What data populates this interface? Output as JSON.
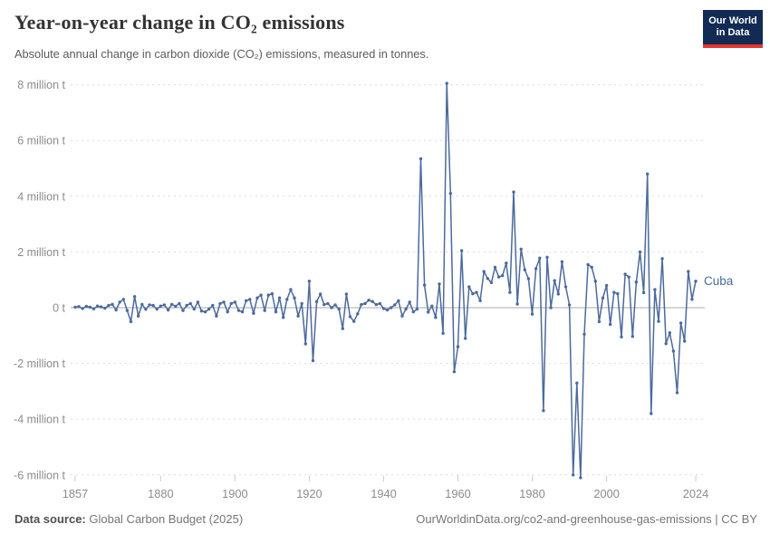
{
  "header": {
    "title": "Year-on-year change in CO₂ emissions",
    "subtitle": "Absolute annual change in carbon dioxide (CO₂) emissions, measured in tonnes.",
    "logo": {
      "line1": "Our World",
      "line2": "in Data"
    }
  },
  "footer": {
    "source_label": "Data source:",
    "source_value": " Global Carbon Budget (2025)",
    "link": "OurWorldinData.org/co2-and-greenhouse-gas-emissions | CC BY"
  },
  "chart_data": {
    "type": "line",
    "title": "Year-on-year change in CO₂ emissions",
    "series_label": "Cuba",
    "x_start_year": 1857,
    "x_end_year": 2024,
    "xticks": [
      1857,
      1880,
      1900,
      1920,
      1940,
      1960,
      1980,
      2000,
      2024
    ],
    "yticks": [
      8,
      6,
      4,
      2,
      0,
      -2,
      -4,
      -6
    ],
    "ytick_labels": [
      "8 million t",
      "6 million t",
      "4 million t",
      "2 million t",
      "0 t",
      "-2 million t",
      "-4 million t",
      "-6 million t"
    ],
    "ylim": [
      -6.5,
      8.3
    ],
    "unit": "million tonnes",
    "grid": "dashed horizontal, solid zero line",
    "legend_position": "end-of-line label",
    "line_color": "#4C6A9C",
    "grid_color": "#dcdcdc",
    "zero_line_color": "#a9a9a9",
    "axis_label_color": "#8b8b8b",
    "values": [
      0.02,
      0.04,
      -0.03,
      0.05,
      0.02,
      -0.04,
      0.06,
      0.03,
      -0.02,
      0.08,
      0.12,
      -0.08,
      0.2,
      0.3,
      -0.1,
      -0.5,
      0.4,
      -0.3,
      0.12,
      -0.06,
      0.1,
      0.08,
      -0.05,
      0.06,
      0.1,
      -0.08,
      0.12,
      0.05,
      0.15,
      -0.1,
      0.08,
      0.15,
      -0.05,
      0.2,
      -0.12,
      -0.15,
      -0.05,
      0.08,
      -0.3,
      0.15,
      0.2,
      -0.15,
      0.15,
      0.2,
      -0.1,
      -0.15,
      0.25,
      0.3,
      -0.2,
      0.35,
      0.45,
      -0.1,
      0.45,
      0.5,
      -0.15,
      0.35,
      -0.35,
      0.3,
      0.65,
      0.35,
      -0.3,
      0.15,
      -1.3,
      0.95,
      -1.9,
      0.22,
      0.49,
      0.11,
      0.15,
      0.0,
      0.1,
      -0.05,
      -0.75,
      0.49,
      -0.32,
      -0.49,
      -0.22,
      0.11,
      0.15,
      0.27,
      0.22,
      0.11,
      0.15,
      -0.03,
      -0.08,
      0.0,
      0.1,
      0.25,
      -0.3,
      -0.05,
      0.2,
      -0.15,
      -0.05,
      5.34,
      0.81,
      -0.16,
      0.06,
      -0.35,
      0.85,
      -0.92,
      8.05,
      4.1,
      -2.3,
      -1.4,
      2.05,
      -1.1,
      0.75,
      0.5,
      0.55,
      0.25,
      1.3,
      1.05,
      0.9,
      1.45,
      1.1,
      1.15,
      1.6,
      0.55,
      4.15,
      0.13,
      2.1,
      1.36,
      1.04,
      -0.23,
      1.4,
      1.78,
      -3.69,
      1.81,
      0.0,
      0.97,
      0.49,
      1.65,
      0.75,
      0.1,
      -6.0,
      -2.7,
      -6.1,
      -0.95,
      1.55,
      1.45,
      0.95,
      -0.5,
      0.35,
      0.8,
      -0.6,
      0.55,
      0.5,
      -1.05,
      1.2,
      1.1,
      -1.03,
      0.92,
      2.0,
      0.54,
      4.8,
      -3.8,
      0.65,
      -0.49,
      1.76,
      -1.29,
      -0.9,
      -1.56,
      -3.05,
      -0.55,
      -1.2,
      1.3,
      0.3,
      0.95
    ]
  }
}
